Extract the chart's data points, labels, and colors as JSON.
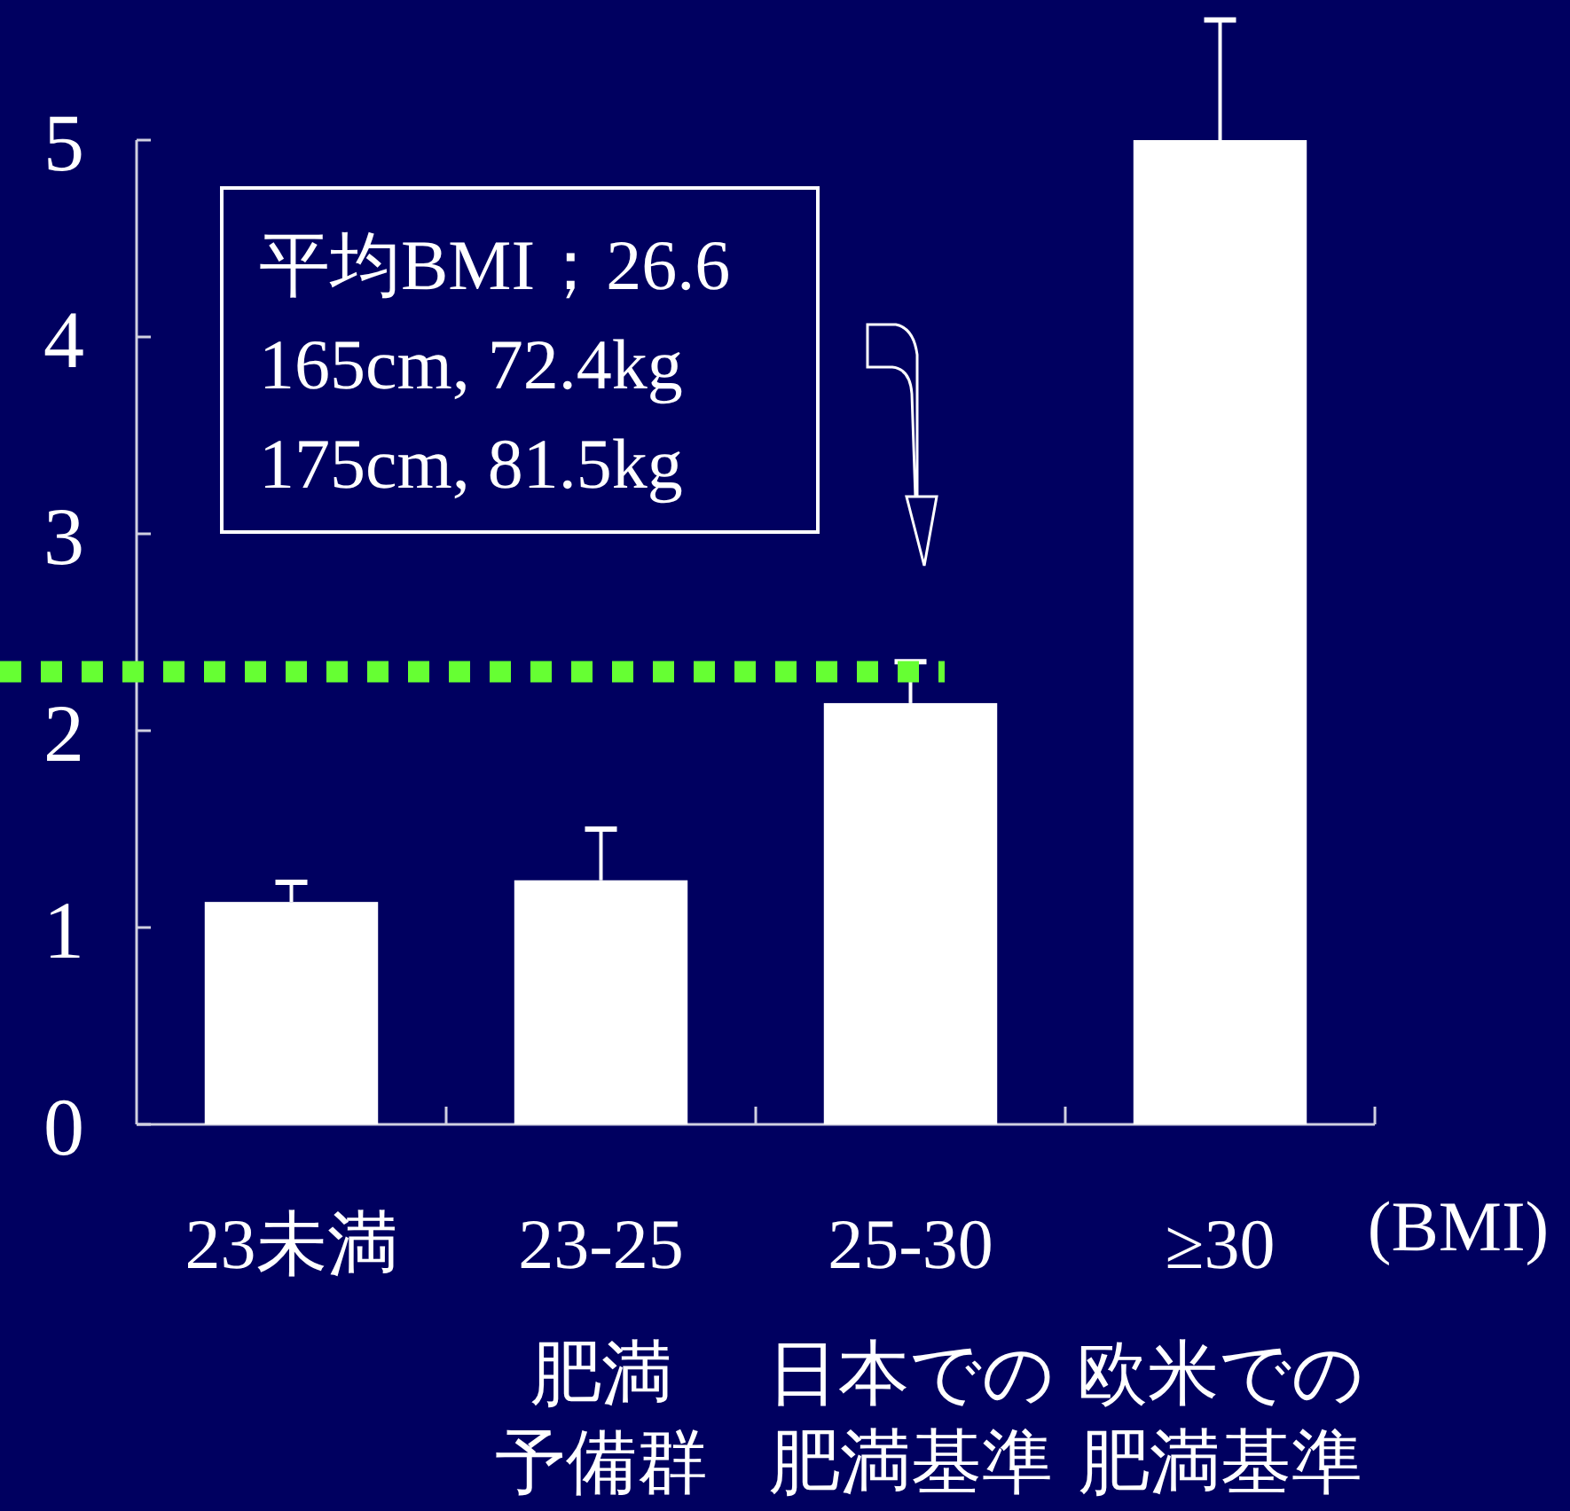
{
  "chart_data": {
    "type": "bar",
    "categories": [
      "23未満",
      "23-25",
      "25-30",
      "≥30"
    ],
    "values": [
      1.13,
      1.24,
      2.14,
      5.0
    ],
    "errors": [
      [
        1.13,
        1.23
      ],
      [
        1.24,
        1.5
      ],
      [
        2.14,
        2.35
      ],
      [
        5.0,
        5.61
      ]
    ],
    "color": "#ffffff",
    "xlabel": "(BMI)",
    "ylim": [
      0,
      5
    ],
    "yticks": [
      0,
      1,
      2,
      3,
      4,
      5
    ],
    "ref_lines": [
      {
        "axis": "y",
        "value": 2.3,
        "color": "#66ff33",
        "line_style": "dotted"
      }
    ],
    "annotations": [
      "平均BMI；26.6\n165cm, 72.4kg\n175cm, 81.5kg",
      "肥満予備群",
      "日本での肥満基準",
      "欧米での肥満基準"
    ],
    "grid": false
  }
}
